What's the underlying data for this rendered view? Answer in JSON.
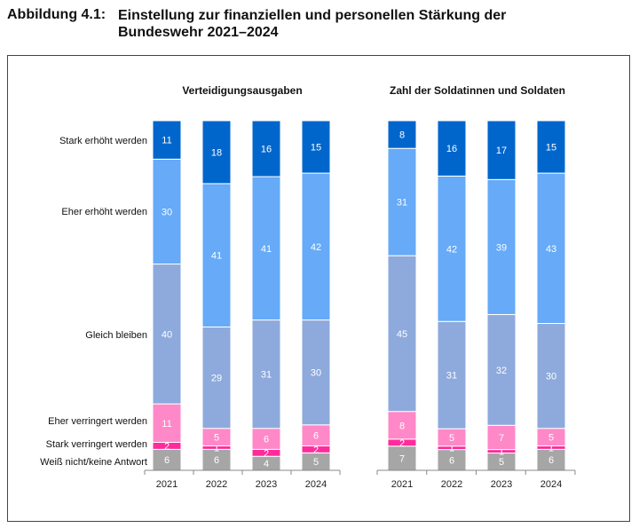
{
  "figure_number": "Abbildung 4.1:",
  "figure_title": "Einstellung zur finanziellen und personellen Stärkung der Bundeswehr 2021–2024",
  "chart_data": [
    {
      "type": "bar",
      "stacked": true,
      "title": "Verteidigungsausgaben",
      "categories": [
        "2021",
        "2022",
        "2023",
        "2024"
      ],
      "series": [
        {
          "name": "Weiß nicht/keine Antwort",
          "color": "#a6a6a6",
          "values": [
            6,
            6,
            4,
            5
          ]
        },
        {
          "name": "Stark verringert werden",
          "color": "#ff2b9c",
          "values": [
            2,
            1,
            2,
            2
          ]
        },
        {
          "name": "Eher verringert werden",
          "color": "#ff88c8",
          "values": [
            11,
            5,
            6,
            6
          ]
        },
        {
          "name": "Gleich bleiben",
          "color": "#8eaadc",
          "values": [
            40,
            29,
            31,
            30
          ]
        },
        {
          "name": "Eher erhöht werden",
          "color": "#66aaf8",
          "values": [
            30,
            41,
            41,
            42
          ]
        },
        {
          "name": "Stark erhöht werden",
          "color": "#0066cc",
          "values": [
            11,
            18,
            16,
            15
          ]
        }
      ],
      "legend": "left"
    },
    {
      "type": "bar",
      "stacked": true,
      "title": "Zahl der Soldatinnen und Soldaten",
      "categories": [
        "2021",
        "2022",
        "2023",
        "2024"
      ],
      "series": [
        {
          "name": "Weiß nicht/keine Antwort",
          "color": "#a6a6a6",
          "values": [
            7,
            6,
            5,
            6
          ]
        },
        {
          "name": "Stark verringert werden",
          "color": "#ff2b9c",
          "values": [
            2,
            1,
            1,
            1
          ]
        },
        {
          "name": "Eher verringert werden",
          "color": "#ff88c8",
          "values": [
            8,
            5,
            7,
            5
          ]
        },
        {
          "name": "Gleich bleiben",
          "color": "#8eaadc",
          "values": [
            45,
            31,
            32,
            30
          ]
        },
        {
          "name": "Eher erhöht werden",
          "color": "#66aaf8",
          "values": [
            31,
            42,
            39,
            43
          ]
        },
        {
          "name": "Stark erhöht werden",
          "color": "#0066cc",
          "values": [
            8,
            16,
            17,
            15
          ]
        }
      ]
    }
  ]
}
